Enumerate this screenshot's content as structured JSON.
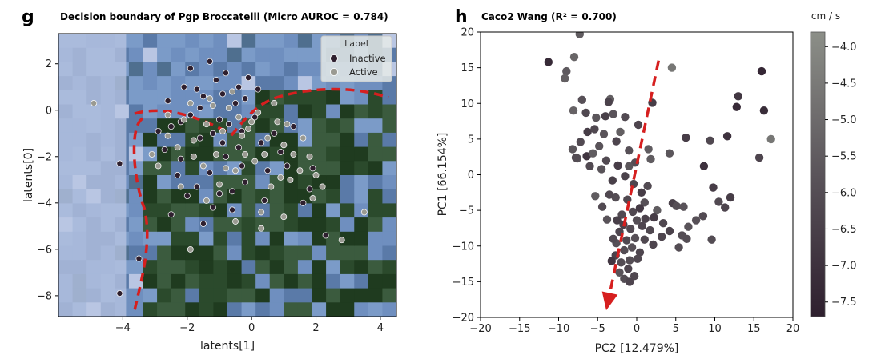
{
  "panels": {
    "g": {
      "letter": "g",
      "title": "Decision boundary of Pgp Broccatelli (Micro AUROC = 0.784)",
      "legend_title": "Label"
    },
    "h": {
      "letter": "h",
      "title": "Caco2 Wang (R² = 0.700)",
      "colorbar_label": "cm / s"
    }
  },
  "chart_data": [
    {
      "type": "scatter",
      "title": "Decision boundary of Pgp Broccatelli (Micro AUROC = 0.784)",
      "xlabel": "latents[1]",
      "ylabel": "latents[0]",
      "xlim": [
        -6,
        4.5
      ],
      "ylim": [
        -8.9,
        3.3
      ],
      "xticks": [
        -4,
        -2,
        0,
        2,
        4
      ],
      "yticks": [
        -8,
        -6,
        -4,
        -2,
        0,
        2
      ],
      "legend_position": "top-right",
      "background": "decision-boundary contour (blue = Inactive region, dark green = Active region)",
      "colors": {
        "inactive": "#2e1f2e",
        "active": "#9a9a92",
        "region_inactive": "#6f8fbf",
        "region_active": "#1f3b1f",
        "boundary": "#d61f1f"
      },
      "series": [
        {
          "name": "Inactive",
          "points": [
            [
              -4.1,
              -2.3
            ],
            [
              -4.1,
              -7.9
            ],
            [
              -3.5,
              -6.4
            ],
            [
              -2.5,
              -0.7
            ],
            [
              -2.2,
              -0.5
            ],
            [
              -1.9,
              -0.2
            ],
            [
              -1.6,
              0.1
            ],
            [
              -1.5,
              0.6
            ],
            [
              -1.2,
              -1.0
            ],
            [
              -1.0,
              -0.4
            ],
            [
              -0.9,
              0.7
            ],
            [
              -0.7,
              -0.6
            ],
            [
              -0.5,
              0.3
            ],
            [
              -0.3,
              -0.9
            ],
            [
              -0.2,
              0.5
            ],
            [
              0.1,
              -0.3
            ],
            [
              -1.3,
              2.1
            ],
            [
              -2.1,
              1.0
            ],
            [
              -1.9,
              1.8
            ],
            [
              -1.1,
              1.3
            ],
            [
              -0.8,
              1.6
            ],
            [
              -0.4,
              1.0
            ],
            [
              -2.7,
              -1.7
            ],
            [
              -2.2,
              -2.1
            ],
            [
              -1.3,
              -2.7
            ],
            [
              -0.8,
              -2.0
            ],
            [
              -0.4,
              -1.6
            ],
            [
              0.3,
              -1.4
            ],
            [
              -1.7,
              -3.3
            ],
            [
              -1.0,
              -3.6
            ],
            [
              -0.2,
              -3.1
            ],
            [
              0.5,
              -2.6
            ],
            [
              1.1,
              -2.4
            ],
            [
              1.8,
              -3.4
            ],
            [
              -2.5,
              -4.5
            ],
            [
              -1.2,
              -4.2
            ],
            [
              -0.6,
              -4.3
            ],
            [
              0.4,
              -3.9
            ],
            [
              1.6,
              -4.0
            ],
            [
              -2.3,
              -2.8
            ],
            [
              -1.6,
              -1.2
            ],
            [
              -0.9,
              -1.4
            ],
            [
              0.7,
              -1.0
            ],
            [
              1.3,
              -0.7
            ],
            [
              -2.9,
              -0.9
            ],
            [
              2.3,
              -5.4
            ],
            [
              -0.6,
              -3.5
            ],
            [
              -1.5,
              -4.9
            ],
            [
              0.2,
              0.9
            ],
            [
              -2.6,
              0.4
            ],
            [
              -1.7,
              0.9
            ],
            [
              -0.1,
              1.4
            ],
            [
              0.9,
              -1.8
            ],
            [
              1.9,
              -2.5
            ],
            [
              -2.0,
              -3.7
            ],
            [
              -0.3,
              -2.4
            ]
          ]
        },
        {
          "name": "Active",
          "points": [
            [
              -4.9,
              0.3
            ],
            [
              -3.1,
              -1.9
            ],
            [
              -2.6,
              -1.1
            ],
            [
              -2.1,
              -0.4
            ],
            [
              -1.8,
              -1.3
            ],
            [
              -1.4,
              -0.6
            ],
            [
              -1.2,
              0.2
            ],
            [
              -0.9,
              -0.9
            ],
            [
              -0.7,
              0.1
            ],
            [
              -0.4,
              -0.3
            ],
            [
              -0.1,
              -0.8
            ],
            [
              0.2,
              -0.1
            ],
            [
              0.5,
              -1.2
            ],
            [
              0.8,
              -0.5
            ],
            [
              1.0,
              -1.5
            ],
            [
              1.3,
              -1.9
            ],
            [
              1.5,
              -2.6
            ],
            [
              1.8,
              -2.0
            ],
            [
              2.0,
              -2.8
            ],
            [
              2.2,
              -3.3
            ],
            [
              1.9,
              -3.8
            ],
            [
              1.2,
              -3.0
            ],
            [
              0.9,
              -2.9
            ],
            [
              0.6,
              -3.3
            ],
            [
              0.4,
              -1.9
            ],
            [
              0.1,
              -2.2
            ],
            [
              -0.2,
              -1.9
            ],
            [
              -0.5,
              -2.6
            ],
            [
              -0.8,
              -2.5
            ],
            [
              -1.1,
              -1.9
            ],
            [
              -1.5,
              -2.4
            ],
            [
              -1.8,
              -2.0
            ],
            [
              -2.3,
              -1.6
            ],
            [
              -2.9,
              -2.4
            ],
            [
              -2.2,
              -3.3
            ],
            [
              -1.4,
              -3.9
            ],
            [
              -0.5,
              -4.8
            ],
            [
              0.3,
              -5.1
            ],
            [
              1.0,
              -4.6
            ],
            [
              2.8,
              -5.6
            ],
            [
              3.5,
              -4.4
            ],
            [
              -1.9,
              -6.0
            ],
            [
              0.0,
              -0.5
            ],
            [
              -0.6,
              0.8
            ],
            [
              -1.3,
              0.5
            ],
            [
              -1.9,
              0.3
            ],
            [
              -2.6,
              -0.2
            ],
            [
              0.7,
              0.3
            ],
            [
              1.1,
              -0.6
            ],
            [
              1.6,
              -1.2
            ],
            [
              0.3,
              -4.4
            ],
            [
              -1.0,
              -3.2
            ],
            [
              -0.3,
              -1.1
            ]
          ]
        }
      ]
    },
    {
      "type": "scatter",
      "title": "Caco2 Wang (R² = 0.700)",
      "xlabel": "PC2 [12.479%]",
      "ylabel": "PC1 [66.154%]",
      "xlim": [
        -20,
        20
      ],
      "ylim": [
        -20,
        20
      ],
      "xticks": [
        -20,
        -15,
        -10,
        -5,
        0,
        5,
        10,
        15,
        20
      ],
      "yticks": [
        -20,
        -15,
        -10,
        -5,
        0,
        5,
        10,
        15,
        20
      ],
      "grid": false,
      "colorbar": {
        "label": "cm / s",
        "min": -7.7,
        "max": -3.8,
        "ticks": [
          -4.0,
          -4.5,
          -5.0,
          -5.5,
          -6.0,
          -6.5,
          -7.0,
          -7.5
        ]
      },
      "arrow": {
        "from": [
          2.8,
          16.0
        ],
        "to": [
          -3.9,
          -19.0
        ],
        "color": "#d61f1f"
      },
      "points": [
        {
          "x": -11.3,
          "y": 15.8,
          "c": -7.3
        },
        {
          "x": -7.3,
          "y": 19.7,
          "c": -5.5
        },
        {
          "x": -8.0,
          "y": 16.5,
          "c": -5.2
        },
        {
          "x": -9.0,
          "y": 14.5,
          "c": -5.6
        },
        {
          "x": -9.2,
          "y": 13.5,
          "c": -5.4
        },
        {
          "x": -7.0,
          "y": 10.5,
          "c": -5.9
        },
        {
          "x": -6.5,
          "y": 8.7,
          "c": -6.2
        },
        {
          "x": -8.1,
          "y": 9.0,
          "c": -5.3
        },
        {
          "x": -5.2,
          "y": 8.0,
          "c": -5.7
        },
        {
          "x": -3.4,
          "y": 10.6,
          "c": -5.4
        },
        {
          "x": -3.6,
          "y": 10.2,
          "c": -6.4
        },
        {
          "x": -1.5,
          "y": 8.1,
          "c": -6.1
        },
        {
          "x": -3.0,
          "y": 8.5,
          "c": -5.8
        },
        {
          "x": -6.3,
          "y": 6.0,
          "c": -6.6
        },
        {
          "x": -5.4,
          "y": 6.4,
          "c": -6.2
        },
        {
          "x": -4.2,
          "y": 5.7,
          "c": -5.8
        },
        {
          "x": -2.1,
          "y": 6.0,
          "c": -5.4
        },
        {
          "x": 0.2,
          "y": 7.0,
          "c": -6.3
        },
        {
          "x": 2.0,
          "y": 10.1,
          "c": -6.6
        },
        {
          "x": 4.5,
          "y": 15.0,
          "c": -4.6
        },
        {
          "x": -8.2,
          "y": 3.6,
          "c": -5.7
        },
        {
          "x": -7.6,
          "y": 2.3,
          "c": -5.8
        },
        {
          "x": -6.4,
          "y": 2.6,
          "c": -6.9
        },
        {
          "x": -5.6,
          "y": 3.0,
          "c": -5.5
        },
        {
          "x": -4.8,
          "y": 4.0,
          "c": -5.8
        },
        {
          "x": -3.9,
          "y": 2.0,
          "c": -6.1
        },
        {
          "x": -2.6,
          "y": 4.7,
          "c": -6.3
        },
        {
          "x": -1.0,
          "y": 3.4,
          "c": -5.9
        },
        {
          "x": 1.5,
          "y": 3.6,
          "c": -5.5
        },
        {
          "x": 1.8,
          "y": 2.2,
          "c": -5.5
        },
        {
          "x": 4.2,
          "y": 3.0,
          "c": -5.7
        },
        {
          "x": 6.3,
          "y": 5.2,
          "c": -6.6
        },
        {
          "x": 9.4,
          "y": 4.8,
          "c": -6.2
        },
        {
          "x": 11.6,
          "y": 5.4,
          "c": -7.0
        },
        {
          "x": 8.6,
          "y": 1.2,
          "c": -7.0
        },
        {
          "x": 9.8,
          "y": -1.8,
          "c": -6.6
        },
        {
          "x": 12.0,
          "y": -3.2,
          "c": -6.6
        },
        {
          "x": 10.5,
          "y": -3.8,
          "c": -6.1
        },
        {
          "x": 15.7,
          "y": 2.4,
          "c": -6.3
        },
        {
          "x": 17.2,
          "y": 5.0,
          "c": -4.6
        },
        {
          "x": 16.0,
          "y": 14.5,
          "c": -7.4
        },
        {
          "x": 13.0,
          "y": 11.0,
          "c": -6.8
        },
        {
          "x": 12.8,
          "y": 9.5,
          "c": -7.3
        },
        {
          "x": 16.3,
          "y": 9.0,
          "c": -7.2
        },
        {
          "x": -7.8,
          "y": 2.4,
          "c": -6.0
        },
        {
          "x": -6.0,
          "y": 1.2,
          "c": -6.1
        },
        {
          "x": -4.5,
          "y": 0.8,
          "c": -5.8
        },
        {
          "x": -2.4,
          "y": 1.3,
          "c": -6.6
        },
        {
          "x": -1.5,
          "y": -0.2,
          "c": -6.4
        },
        {
          "x": -0.2,
          "y": 1.7,
          "c": -6.0
        },
        {
          "x": -5.3,
          "y": -3.0,
          "c": -5.5
        },
        {
          "x": -2.7,
          "y": -3.2,
          "c": -6.0
        },
        {
          "x": -3.5,
          "y": -2.8,
          "c": -6.2
        },
        {
          "x": -1.2,
          "y": -3.5,
          "c": -6.2
        },
        {
          "x": 0.6,
          "y": -2.5,
          "c": -6.6
        },
        {
          "x": 1.0,
          "y": -3.9,
          "c": -5.9
        },
        {
          "x": 2.6,
          "y": -5.0,
          "c": -5.5
        },
        {
          "x": 4.6,
          "y": -4.0,
          "c": -6.4
        },
        {
          "x": 5.1,
          "y": -4.4,
          "c": -5.9
        },
        {
          "x": 6.0,
          "y": -4.5,
          "c": -5.8
        },
        {
          "x": -1.9,
          "y": -5.6,
          "c": -6.1
        },
        {
          "x": -0.5,
          "y": -5.2,
          "c": -6.2
        },
        {
          "x": 0.4,
          "y": -4.7,
          "c": -6.7
        },
        {
          "x": -2.5,
          "y": -6.4,
          "c": -6.5
        },
        {
          "x": -1.7,
          "y": -7.0,
          "c": -6.4
        },
        {
          "x": 0.0,
          "y": -6.4,
          "c": -6.0
        },
        {
          "x": 1.1,
          "y": -6.2,
          "c": -6.4
        },
        {
          "x": 2.2,
          "y": -6.0,
          "c": -6.6
        },
        {
          "x": -2.2,
          "y": -8.0,
          "c": -6.3
        },
        {
          "x": -0.8,
          "y": -7.6,
          "c": -6.1
        },
        {
          "x": 0.7,
          "y": -7.2,
          "c": -6.3
        },
        {
          "x": 1.7,
          "y": -7.8,
          "c": -6.2
        },
        {
          "x": 3.2,
          "y": -8.7,
          "c": -6.3
        },
        {
          "x": -2.6,
          "y": -9.6,
          "c": -5.9
        },
        {
          "x": -1.3,
          "y": -9.2,
          "c": -6.2
        },
        {
          "x": -0.2,
          "y": -8.9,
          "c": -5.9
        },
        {
          "x": 1.0,
          "y": -9.1,
          "c": -6.2
        },
        {
          "x": 2.1,
          "y": -9.8,
          "c": -6.3
        },
        {
          "x": -2.7,
          "y": -11.3,
          "c": -6.4
        },
        {
          "x": -1.6,
          "y": -10.6,
          "c": -6.0
        },
        {
          "x": -0.6,
          "y": -10.2,
          "c": -5.9
        },
        {
          "x": 0.4,
          "y": -10.9,
          "c": -6.3
        },
        {
          "x": -3.2,
          "y": -12.1,
          "c": -6.8
        },
        {
          "x": -2.0,
          "y": -12.3,
          "c": -6.0
        },
        {
          "x": -0.9,
          "y": -12.0,
          "c": -6.0
        },
        {
          "x": 0.1,
          "y": -11.8,
          "c": -6.2
        },
        {
          "x": -2.2,
          "y": -13.7,
          "c": -5.8
        },
        {
          "x": -1.1,
          "y": -13.2,
          "c": -6.3
        },
        {
          "x": -0.3,
          "y": -14.2,
          "c": -6.2
        },
        {
          "x": -1.6,
          "y": -14.6,
          "c": -6.0
        },
        {
          "x": -0.9,
          "y": -15.0,
          "c": -6.3
        },
        {
          "x": -3.0,
          "y": -9.0,
          "c": -6.1
        },
        {
          "x": 4.2,
          "y": -7.9,
          "c": -6.4
        },
        {
          "x": 5.8,
          "y": -8.5,
          "c": -6.0
        },
        {
          "x": 3.4,
          "y": -6.8,
          "c": -6.2
        },
        {
          "x": 6.6,
          "y": -7.3,
          "c": -5.8
        },
        {
          "x": 7.6,
          "y": -6.4,
          "c": -5.9
        },
        {
          "x": 8.5,
          "y": -5.8,
          "c": -6.1
        },
        {
          "x": 9.6,
          "y": -9.1,
          "c": -6.0
        },
        {
          "x": 11.3,
          "y": -4.6,
          "c": -6.3
        },
        {
          "x": 5.4,
          "y": -10.2,
          "c": -6.0
        },
        {
          "x": 6.4,
          "y": -9.0,
          "c": -6.0
        },
        {
          "x": -4.4,
          "y": -4.5,
          "c": -6.1
        },
        {
          "x": -3.8,
          "y": -6.3,
          "c": -5.8
        },
        {
          "x": -1.0,
          "y": 1.2,
          "c": -5.7
        },
        {
          "x": -7.2,
          "y": 4.6,
          "c": -6.1
        },
        {
          "x": -0.4,
          "y": -1.3,
          "c": -6.3
        },
        {
          "x": 1.4,
          "y": -1.6,
          "c": -6.1
        },
        {
          "x": -4.0,
          "y": 8.2,
          "c": -6.5
        },
        {
          "x": -3.1,
          "y": -0.8,
          "c": -6.5
        }
      ]
    }
  ]
}
